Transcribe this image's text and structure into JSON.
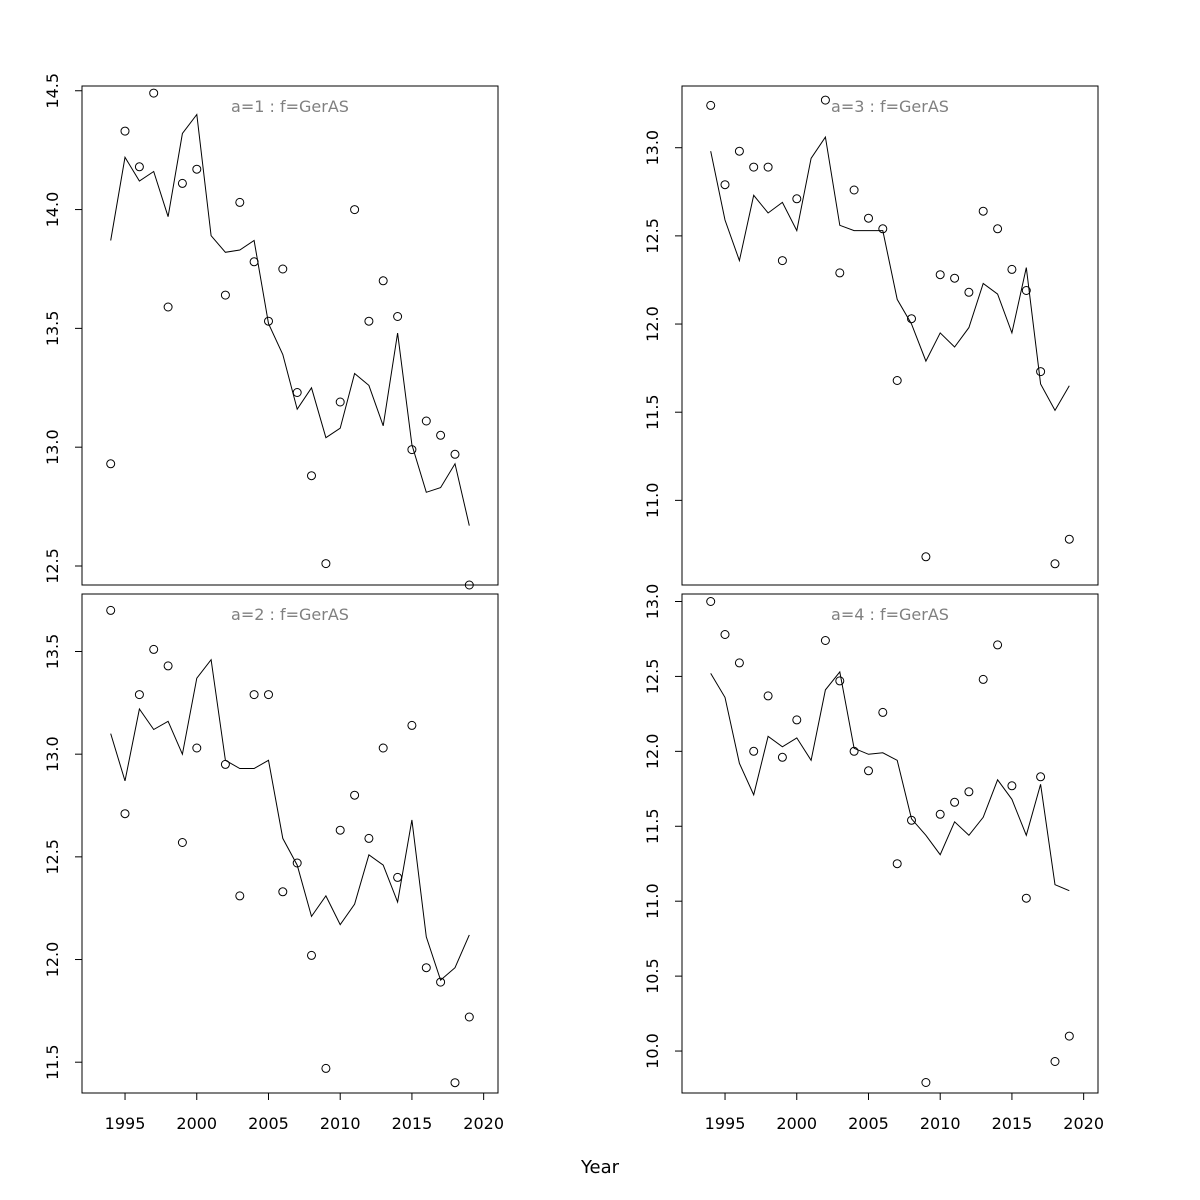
{
  "chart_data": [
    {
      "type": "scatter",
      "title": "a=1  :  f=GerAS",
      "xlabel": "Year",
      "ylabel": "",
      "xlim": [
        1992,
        2021
      ],
      "ylim": [
        12.42,
        14.52
      ],
      "xticks": [
        1995,
        2000,
        2005,
        2010,
        2015,
        2020
      ],
      "yticks": [
        12.5,
        13.0,
        13.5,
        14.0,
        14.5
      ],
      "ytick_labels": [
        "12.5",
        "13.0",
        "13.5",
        "14.0",
        "14.5"
      ],
      "x": [
        1994,
        1995,
        1996,
        1997,
        1998,
        1999,
        2000,
        2001,
        2002,
        2003,
        2004,
        2005,
        2006,
        2007,
        2008,
        2009,
        2010,
        2011,
        2012,
        2013,
        2014,
        2015,
        2016,
        2017,
        2018,
        2019
      ],
      "series": [
        {
          "kind": "points",
          "values": [
            12.93,
            14.33,
            14.18,
            14.49,
            13.59,
            14.11,
            14.17,
            null,
            13.64,
            14.03,
            13.78,
            13.53,
            13.75,
            13.23,
            12.88,
            12.51,
            13.19,
            14.0,
            13.53,
            13.7,
            13.55,
            12.99,
            13.11,
            13.05,
            12.97,
            12.42
          ]
        },
        {
          "kind": "line",
          "values": [
            13.87,
            14.22,
            14.12,
            14.16,
            13.97,
            14.32,
            14.4,
            13.89,
            13.82,
            13.83,
            13.87,
            13.52,
            13.39,
            13.16,
            13.25,
            13.04,
            13.08,
            13.31,
            13.26,
            13.09,
            13.48,
            13.01,
            12.81,
            12.83,
            12.93,
            12.67
          ]
        }
      ]
    },
    {
      "type": "scatter",
      "title": "a=3  :  f=GerAS",
      "xlabel": "Year",
      "ylabel": "",
      "xlim": [
        1992,
        2021
      ],
      "ylim": [
        10.52,
        13.35
      ],
      "xticks": [
        1995,
        2000,
        2005,
        2010,
        2015,
        2020
      ],
      "yticks": [
        11.0,
        11.5,
        12.0,
        12.5,
        13.0
      ],
      "ytick_labels": [
        "11.0",
        "11.5",
        "12.0",
        "12.5",
        "13.0"
      ],
      "x": [
        1994,
        1995,
        1996,
        1997,
        1998,
        1999,
        2000,
        2001,
        2002,
        2003,
        2004,
        2005,
        2006,
        2007,
        2008,
        2009,
        2010,
        2011,
        2012,
        2013,
        2014,
        2015,
        2016,
        2017,
        2018,
        2019
      ],
      "series": [
        {
          "kind": "points",
          "values": [
            13.24,
            12.79,
            12.98,
            12.89,
            12.89,
            12.36,
            12.71,
            null,
            13.27,
            12.29,
            12.76,
            12.6,
            12.54,
            11.68,
            12.03,
            10.68,
            12.28,
            12.26,
            12.18,
            12.64,
            12.54,
            12.31,
            12.19,
            11.73,
            10.64,
            10.78
          ]
        },
        {
          "kind": "line",
          "values": [
            12.98,
            12.59,
            12.36,
            12.73,
            12.63,
            12.69,
            12.53,
            12.94,
            13.06,
            12.56,
            12.53,
            12.53,
            12.53,
            12.14,
            12.0,
            11.79,
            11.95,
            11.87,
            11.98,
            12.23,
            12.17,
            11.95,
            12.32,
            11.66,
            11.51,
            11.65
          ]
        }
      ]
    },
    {
      "type": "scatter",
      "title": "a=2  :  f=GerAS",
      "xlabel": "Year",
      "ylabel": "",
      "xlim": [
        1992,
        2021
      ],
      "ylim": [
        11.35,
        13.78
      ],
      "xticks": [
        1995,
        2000,
        2005,
        2010,
        2015,
        2020
      ],
      "xtick_labels": [
        "1995",
        "2000",
        "2005",
        "2010",
        "2015",
        "2020"
      ],
      "yticks": [
        11.5,
        12.0,
        12.5,
        13.0,
        13.5
      ],
      "ytick_labels": [
        "11.5",
        "12.0",
        "12.5",
        "13.0",
        "13.5"
      ],
      "x": [
        1994,
        1995,
        1996,
        1997,
        1998,
        1999,
        2000,
        2001,
        2002,
        2003,
        2004,
        2005,
        2006,
        2007,
        2008,
        2009,
        2010,
        2011,
        2012,
        2013,
        2014,
        2015,
        2016,
        2017,
        2018,
        2019
      ],
      "series": [
        {
          "kind": "points",
          "values": [
            13.7,
            12.71,
            13.29,
            13.51,
            13.43,
            12.57,
            13.03,
            null,
            12.95,
            12.31,
            13.29,
            13.29,
            12.33,
            12.47,
            12.02,
            11.47,
            12.63,
            12.8,
            12.59,
            13.03,
            12.4,
            13.14,
            11.96,
            11.89,
            11.4,
            11.72
          ]
        },
        {
          "kind": "line",
          "values": [
            13.1,
            12.87,
            13.22,
            13.12,
            13.16,
            13.0,
            13.37,
            13.46,
            12.97,
            12.93,
            12.93,
            12.97,
            12.59,
            12.46,
            12.21,
            12.31,
            12.17,
            12.27,
            12.51,
            12.46,
            12.28,
            12.68,
            12.11,
            11.9,
            11.96,
            12.12
          ]
        }
      ]
    },
    {
      "type": "scatter",
      "title": "a=4  :  f=GerAS",
      "xlabel": "Year",
      "ylabel": "",
      "xlim": [
        1992,
        2021
      ],
      "ylim": [
        9.72,
        13.05
      ],
      "xticks": [
        1995,
        2000,
        2005,
        2010,
        2015,
        2020
      ],
      "xtick_labels": [
        "1995",
        "2000",
        "2005",
        "2010",
        "2015",
        "2020"
      ],
      "yticks": [
        10.0,
        10.5,
        11.0,
        11.5,
        12.0,
        12.5,
        13.0
      ],
      "ytick_labels": [
        "10.0",
        "10.5",
        "11.0",
        "11.5",
        "12.0",
        "12.5",
        "13.0"
      ],
      "x": [
        1994,
        1995,
        1996,
        1997,
        1998,
        1999,
        2000,
        2001,
        2002,
        2003,
        2004,
        2005,
        2006,
        2007,
        2008,
        2009,
        2010,
        2011,
        2012,
        2013,
        2014,
        2015,
        2016,
        2017,
        2018,
        2019
      ],
      "series": [
        {
          "kind": "points",
          "values": [
            13.0,
            12.78,
            12.59,
            12.0,
            12.37,
            11.96,
            12.21,
            null,
            12.74,
            12.47,
            12.0,
            11.87,
            12.26,
            11.25,
            11.54,
            9.79,
            11.58,
            11.66,
            11.73,
            12.48,
            12.71,
            11.77,
            11.02,
            11.83,
            9.93,
            10.1
          ]
        },
        {
          "kind": "line",
          "values": [
            12.52,
            12.36,
            11.92,
            11.71,
            12.1,
            12.03,
            12.09,
            11.94,
            12.41,
            12.53,
            12.02,
            11.98,
            11.99,
            11.94,
            11.55,
            11.44,
            11.31,
            11.53,
            11.44,
            11.56,
            11.81,
            11.68,
            11.44,
            11.78,
            11.11,
            11.07
          ]
        }
      ]
    }
  ],
  "figure": {
    "xlabel": "Year"
  }
}
